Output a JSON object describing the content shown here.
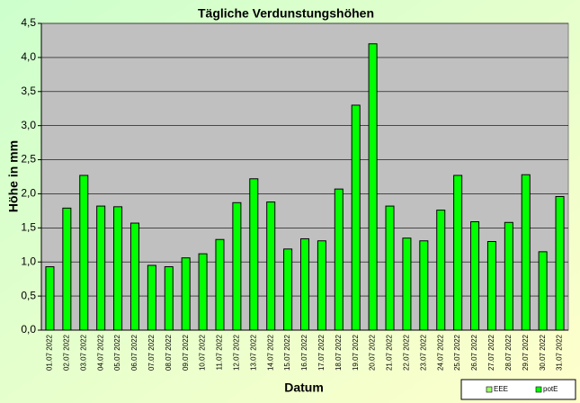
{
  "chart_data": {
    "type": "bar",
    "title": "Tägliche Verdunstungshöhen",
    "x_label": "Datum",
    "y_label": "Höhe in mm",
    "categories": [
      "01.07 2022",
      "02.07 2022",
      "03.07 2022",
      "04.07 2022",
      "05.07 2022",
      "06.07 2022",
      "07.07 2022",
      "08.07 2022",
      "09.07 2022",
      "10.07 2022",
      "11.07 2022",
      "12.07 2022",
      "13.07 2022",
      "14.07 2022",
      "15.07 2022",
      "16.07 2022",
      "17.07 2022",
      "18.07 2022",
      "19.07 2022",
      "20.07 2022",
      "21.07 2022",
      "22.07 2022",
      "23.07 2022",
      "24.07 2022",
      "25.07 2022",
      "26.07 2022",
      "27.07 2022",
      "28.07 2022",
      "29.07 2022",
      "30.07 2022",
      "31.07 2022"
    ],
    "series": [
      {
        "name": "EEE",
        "color": "#99ff66",
        "values": [
          null,
          null,
          null,
          null,
          null,
          null,
          null,
          null,
          null,
          null,
          null,
          null,
          null,
          null,
          null,
          null,
          null,
          null,
          null,
          null,
          null,
          null,
          null,
          null,
          null,
          null,
          null,
          null,
          null,
          null,
          null
        ]
      },
      {
        "name": "potE",
        "color": "#00ff00",
        "values": [
          0.93,
          1.79,
          2.27,
          1.82,
          1.81,
          1.57,
          0.95,
          0.93,
          1.06,
          1.12,
          1.33,
          1.87,
          2.22,
          1.88,
          1.19,
          1.34,
          1.31,
          2.07,
          3.3,
          4.2,
          1.82,
          1.35,
          1.31,
          1.76,
          2.27,
          1.59,
          1.3,
          1.58,
          2.28,
          1.15,
          1.96
        ]
      }
    ],
    "ylim": [
      0,
      4.5
    ],
    "yticks": [
      {
        "value": 0,
        "label": "0,0"
      },
      {
        "value": 0.5,
        "label": "0,5"
      },
      {
        "value": 1,
        "label": "1,0"
      },
      {
        "value": 1.5,
        "label": "1,5"
      },
      {
        "value": 2,
        "label": "2,0"
      },
      {
        "value": 2.5,
        "label": "2,5"
      },
      {
        "value": 3,
        "label": "3,0"
      },
      {
        "value": 3.5,
        "label": "3,5"
      },
      {
        "value": 4,
        "label": "4,0"
      },
      {
        "value": 4.5,
        "label": "4,5"
      }
    ],
    "grid": true,
    "legend": "bottom-right",
    "plot_background": "#c0c0c0"
  }
}
